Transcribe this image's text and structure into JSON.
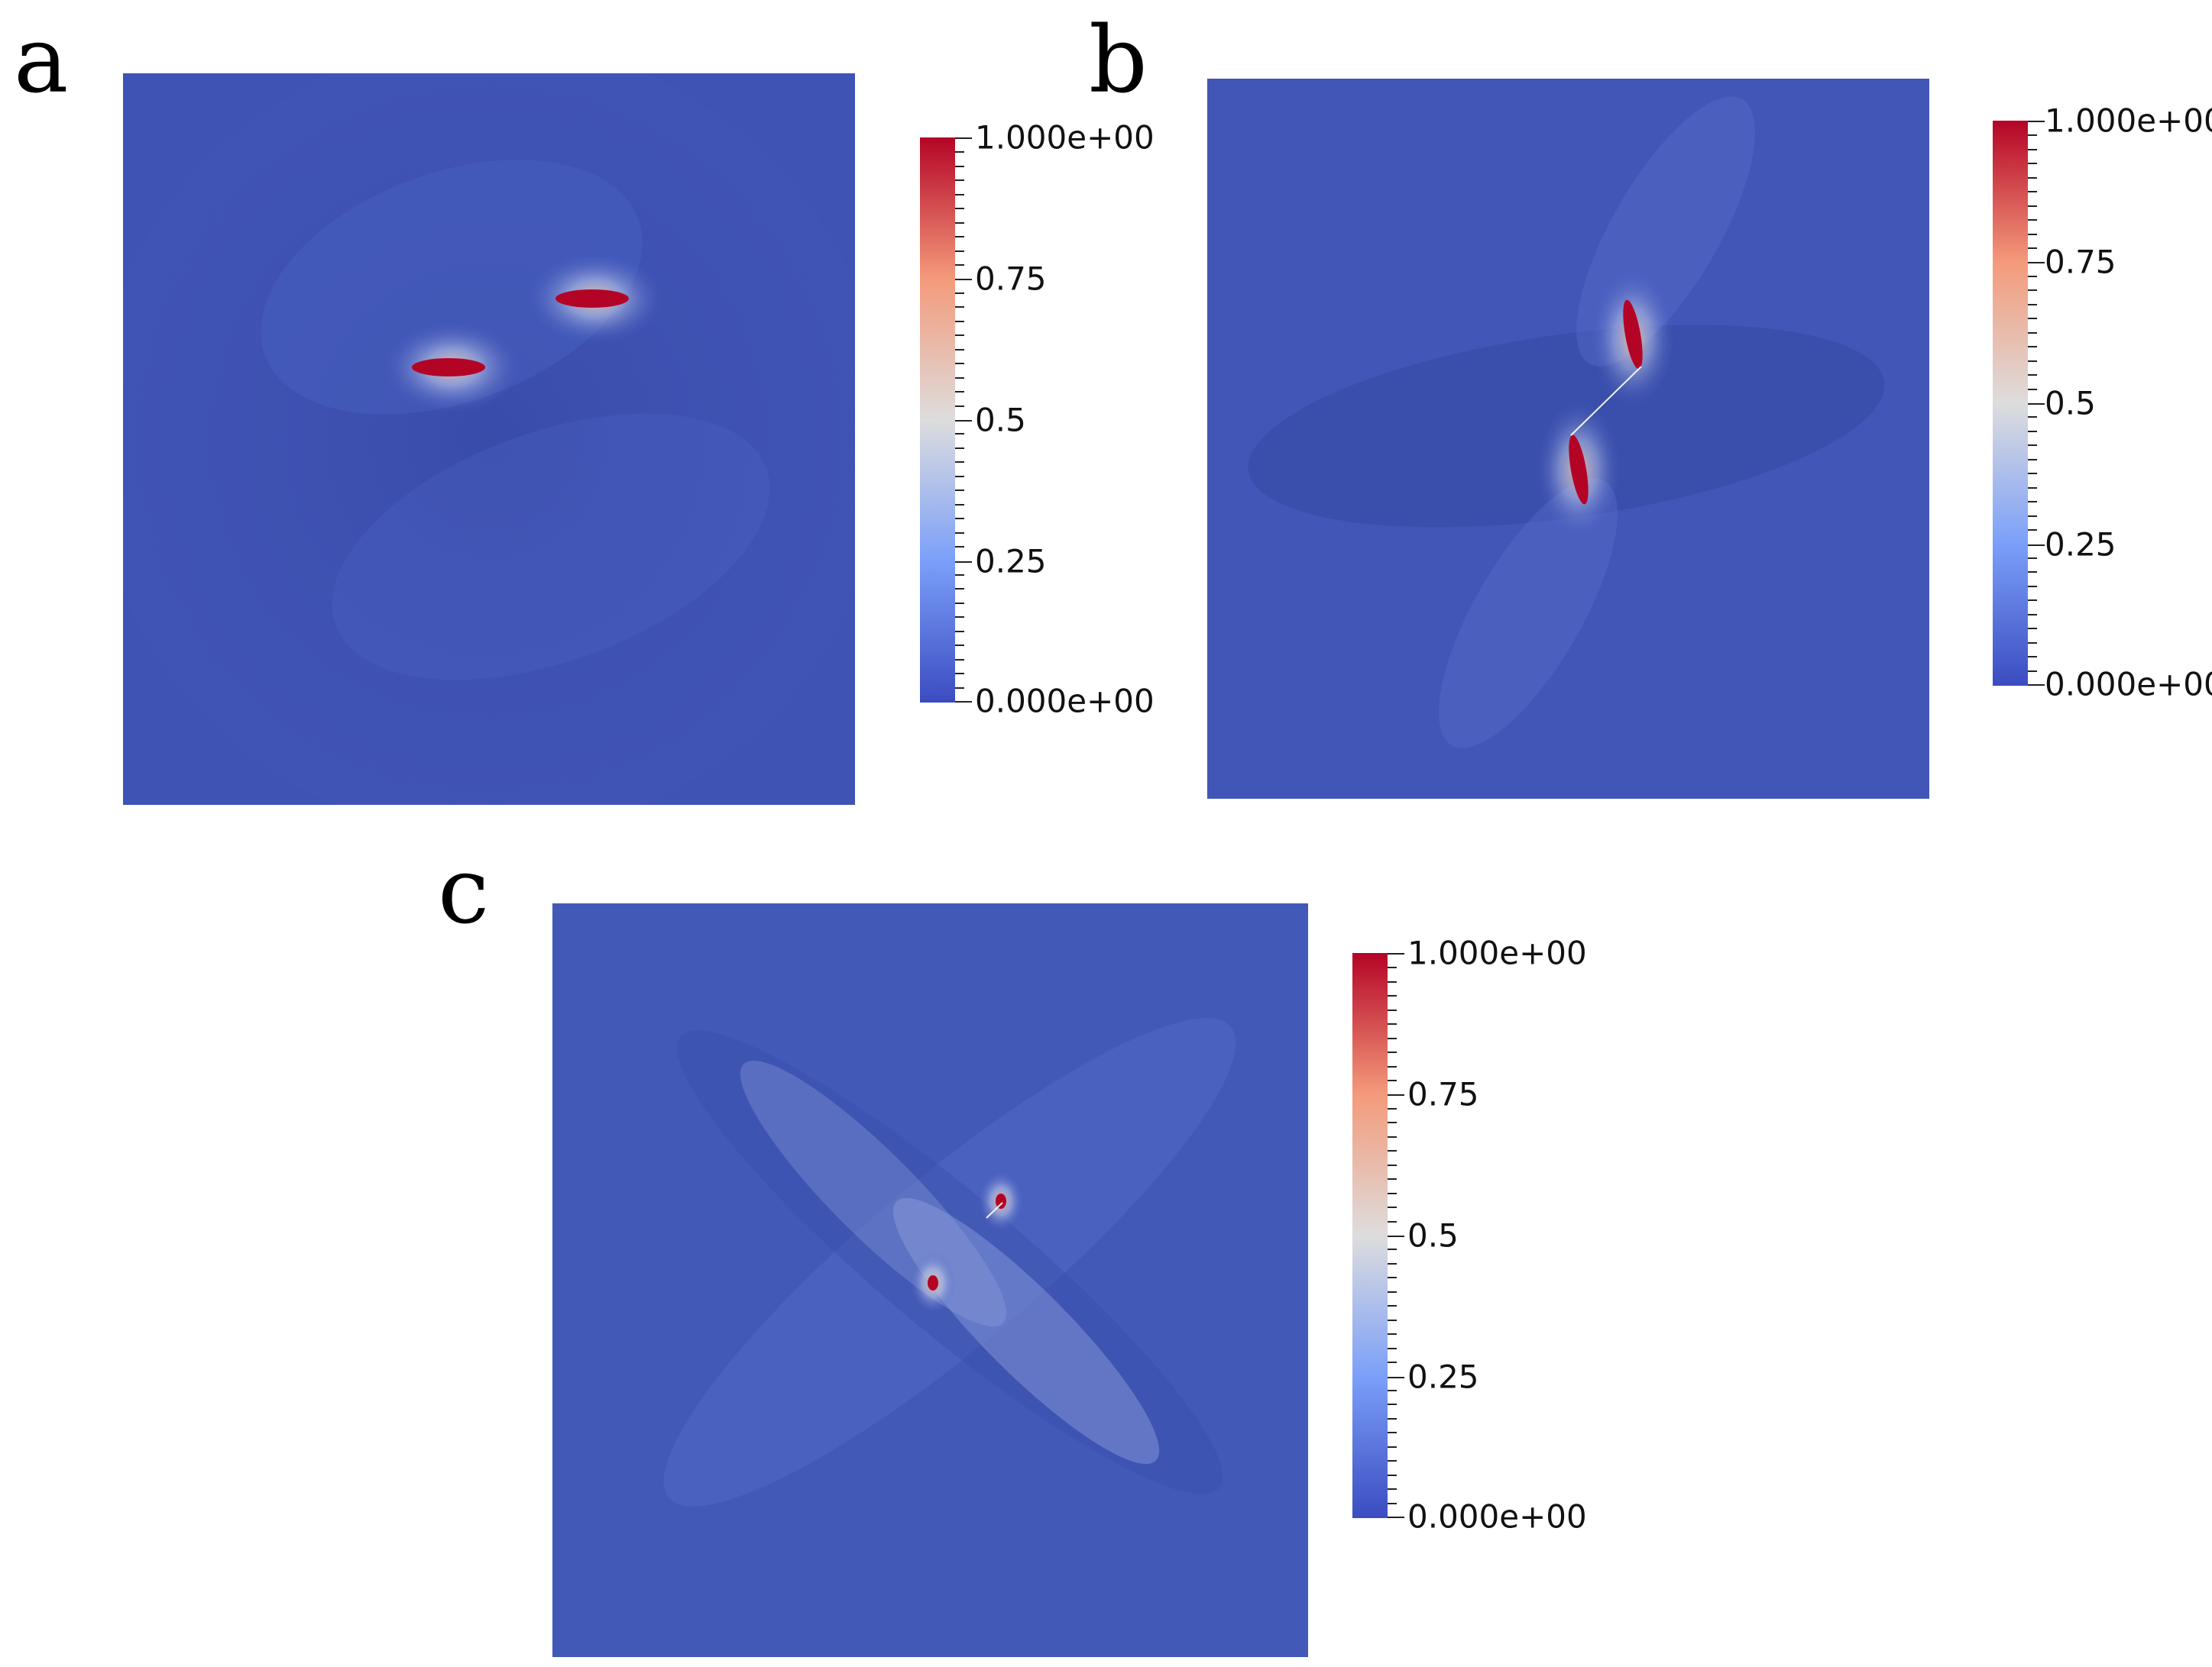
{
  "panels": [
    {
      "label": "a"
    },
    {
      "label": "b"
    },
    {
      "label": "c"
    }
  ],
  "colorbar": {
    "ticks": [
      "1.000e+00",
      "0.75",
      "0.5",
      "0.25",
      "0.000e+00"
    ],
    "range": [
      0,
      1
    ],
    "colors": [
      "#3b4cc0",
      "#7b9ff9",
      "#dddddd",
      "#f49a7b",
      "#b40426"
    ]
  }
}
